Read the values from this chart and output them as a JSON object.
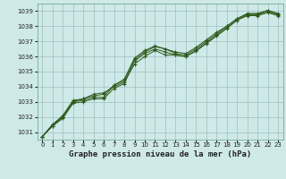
{
  "title": "Graphe pression niveau de la mer (hPa)",
  "bg_color": "#cfe9e9",
  "plot_bg_color": "#cfe9e9",
  "grid_color": "#9dbfbf",
  "line_color": "#2d5a1b",
  "xlim": [
    -0.5,
    23.5
  ],
  "ylim": [
    1030.5,
    1039.5
  ],
  "yticks": [
    1031,
    1032,
    1033,
    1034,
    1035,
    1036,
    1037,
    1038,
    1039
  ],
  "xticks": [
    0,
    1,
    2,
    3,
    4,
    5,
    6,
    7,
    8,
    9,
    10,
    11,
    12,
    13,
    14,
    15,
    16,
    17,
    18,
    19,
    20,
    21,
    22,
    23
  ],
  "series": [
    [
      1030.7,
      1031.4,
      1032.0,
      1033.0,
      1033.1,
      1033.3,
      1033.3,
      1034.1,
      1034.4,
      1035.8,
      1036.3,
      1036.65,
      1036.5,
      1036.2,
      1036.1,
      1036.5,
      1037.0,
      1037.5,
      1038.0,
      1038.5,
      1038.8,
      1038.8,
      1039.05,
      1038.8
    ],
    [
      1030.7,
      1031.5,
      1032.0,
      1033.0,
      1033.2,
      1033.5,
      1033.6,
      1034.0,
      1034.3,
      1035.5,
      1036.0,
      1036.4,
      1036.1,
      1036.1,
      1036.0,
      1036.4,
      1036.9,
      1037.4,
      1037.9,
      1038.4,
      1038.7,
      1038.7,
      1038.9,
      1038.7
    ],
    [
      1030.7,
      1031.5,
      1032.1,
      1033.1,
      1033.2,
      1033.4,
      1033.5,
      1034.1,
      1034.5,
      1035.9,
      1036.4,
      1036.7,
      1036.5,
      1036.3,
      1036.2,
      1036.6,
      1037.1,
      1037.6,
      1038.0,
      1038.5,
      1038.85,
      1038.85,
      1039.05,
      1038.85
    ],
    [
      1030.7,
      1031.4,
      1031.9,
      1032.9,
      1033.0,
      1033.2,
      1033.2,
      1033.9,
      1034.2,
      1035.7,
      1036.2,
      1036.5,
      1036.3,
      1036.1,
      1036.0,
      1036.35,
      1036.85,
      1037.35,
      1037.85,
      1038.4,
      1038.75,
      1038.75,
      1038.95,
      1038.75
    ]
  ],
  "tick_fontsize": 5,
  "xlabel_fontsize": 6.5,
  "tick_color": "#222222",
  "xlabel_color": "#222222"
}
